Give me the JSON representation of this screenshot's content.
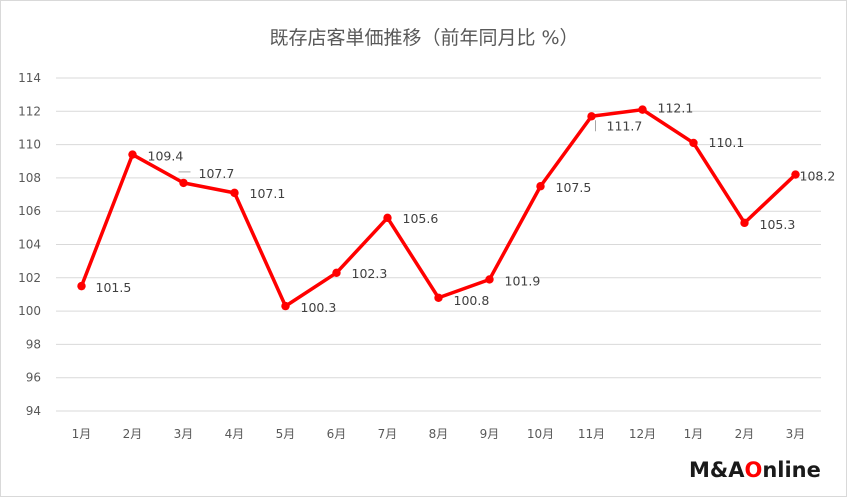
{
  "chart_data": {
    "type": "line",
    "title": "既存店客単価推移（前年同月比 %）",
    "categories": [
      "1月",
      "2月",
      "3月",
      "4月",
      "5月",
      "6月",
      "7月",
      "8月",
      "9月",
      "10月",
      "11月",
      "12月",
      "1月",
      "2月",
      "3月"
    ],
    "series": [
      {
        "values": [
          101.5,
          109.4,
          107.7,
          107.1,
          100.3,
          102.3,
          105.6,
          100.8,
          101.9,
          107.5,
          111.7,
          112.1,
          110.1,
          105.3,
          108.2
        ]
      }
    ],
    "data_labels": [
      "101.5",
      "109.4",
      "107.7",
      "107.1",
      "100.3",
      "102.3",
      "105.6",
      "100.8",
      "101.9",
      "107.5",
      "111.7",
      "112.1",
      "110.1",
      "105.3",
      "108.2"
    ],
    "ylim": [
      94,
      114
    ],
    "yticks": [
      94,
      96,
      98,
      100,
      102,
      104,
      106,
      108,
      110,
      112,
      114
    ],
    "grid": true,
    "legend": "none",
    "line_color": "#ff0000"
  },
  "logo": {
    "text": "M&AOnline",
    "parts": [
      "M&A",
      "O",
      "nline"
    ],
    "red": "#ff0000",
    "dark": "#1a1a1a"
  }
}
